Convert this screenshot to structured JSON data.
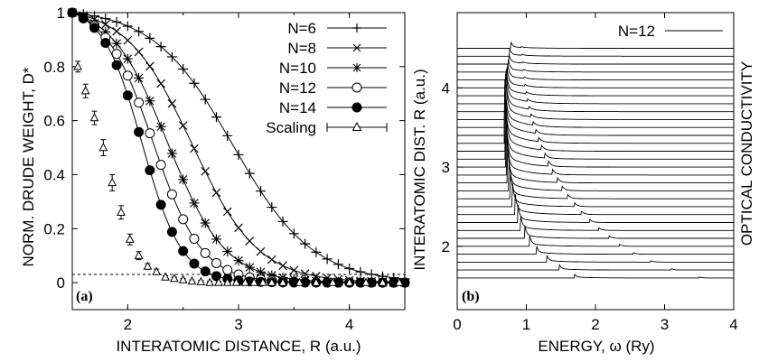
{
  "chart_data": [
    {
      "type": "line",
      "panel_label": "(a)",
      "xlabel": "INTERATOMIC DISTANCE, R (a.u.)",
      "ylabel": "NORM. DRUDE WEIGHT, D*",
      "xlim": [
        1.5,
        4.5
      ],
      "ylim": [
        -0.1,
        1.0
      ],
      "xticks": [
        "2",
        "3",
        "4"
      ],
      "yticks": [
        "0",
        "0.2",
        "0.4",
        "0.6",
        "0.8",
        "1"
      ],
      "legend_position": "top-right",
      "reference_line": "dashed horizontal at D* = 0",
      "series": [
        {
          "name": "N=6",
          "marker": "plus",
          "midpoint": 2.95,
          "width": 0.36
        },
        {
          "name": "N=8",
          "marker": "cross",
          "midpoint": 2.58,
          "width": 0.3
        },
        {
          "name": "N=10",
          "marker": "asterisk",
          "midpoint": 2.36,
          "width": 0.26
        },
        {
          "name": "N=12",
          "marker": "open-circle",
          "midpoint": 2.23,
          "width": 0.22
        },
        {
          "name": "N=14",
          "marker": "filled-circle",
          "midpoint": 2.13,
          "width": 0.18
        },
        {
          "name": "Scaling",
          "marker": "open-triangle",
          "error_bars": true,
          "x": [
            1.55,
            1.62,
            1.7,
            1.78,
            1.86,
            1.94,
            2.02,
            2.1,
            2.18,
            2.26,
            2.34,
            2.42,
            2.5,
            2.58,
            2.66,
            2.74,
            2.82,
            2.9,
            2.98,
            3.06,
            3.14,
            3.22,
            3.3,
            3.4,
            3.55,
            3.7,
            3.85,
            4.0,
            4.15,
            4.3,
            4.45
          ],
          "y": [
            0.8,
            0.71,
            0.61,
            0.5,
            0.37,
            0.26,
            0.16,
            0.1,
            0.06,
            0.04,
            0.02,
            0.015,
            0.01,
            0.005,
            0.003,
            0.0,
            0.0,
            0.0,
            0.0,
            0.0,
            0.0,
            0.0,
            0.0,
            0.0,
            0.0,
            0.0,
            0.0,
            0.0,
            0.0,
            0.0,
            0.0
          ],
          "err": [
            0.02,
            0.025,
            0.025,
            0.03,
            0.03,
            0.025,
            0.02,
            0.015,
            0.01,
            0.01,
            0.005,
            0.005,
            0.005,
            0.005,
            0.005,
            0.005,
            0.005,
            0.005,
            0.005,
            0.005,
            0.005,
            0.005,
            0.005,
            0.005,
            0.005,
            0.005,
            0.005,
            0.005,
            0.005,
            0.005,
            0.005
          ]
        }
      ]
    },
    {
      "type": "line",
      "panel_label": "(b)",
      "xlabel": "ENERGY, ω (Ry)",
      "ylabel": "INTERATOMIC DIST. R (a.u.)",
      "right_label": "OPTICAL CONDUCTIVITY",
      "xlim": [
        0,
        4
      ],
      "ylim": [
        1.2,
        4.95
      ],
      "xticks": [
        "0",
        "1",
        "2",
        "3",
        "4"
      ],
      "yticks": [
        "2",
        "3",
        "4"
      ],
      "legend_position": "top-right",
      "series": [
        {
          "name": "N=12"
        }
      ],
      "waterfall": {
        "R_start": 1.6,
        "R_step": 0.1,
        "R_end": 4.5,
        "peak_energy": [
          1.7,
          1.48,
          1.3,
          1.15,
          1.05,
          0.98,
          0.92,
          0.88,
          0.84,
          0.8,
          0.77,
          0.75,
          0.73,
          0.72,
          0.71,
          0.7,
          0.7,
          0.69,
          0.69,
          0.69,
          0.7,
          0.7,
          0.71,
          0.71,
          0.72,
          0.73,
          0.74,
          0.75,
          0.76,
          0.78
        ],
        "peak_height": [
          0.5,
          0.7,
          0.9,
          1.1,
          1.4,
          1.7,
          2.0,
          2.4,
          2.8,
          3.2,
          3.6,
          4.2,
          4.8,
          5.4,
          6.0,
          6.5,
          6.8,
          7.0,
          7.0,
          6.6,
          6.0,
          5.2,
          4.4,
          3.6,
          2.8,
          2.2,
          1.7,
          1.3,
          1.0,
          0.8
        ],
        "secondary_peak_energy": [
          3.5,
          3.1,
          2.8,
          2.55,
          2.35,
          2.2,
          2.05,
          1.92,
          1.8,
          1.7,
          1.6,
          1.52,
          1.45,
          1.38,
          1.32,
          1.27,
          1.22,
          1.18,
          1.14,
          1.1,
          1.07,
          1.04,
          1.02,
          1.0,
          0.98,
          0.97,
          0.96,
          0.95,
          0.94,
          0.93
        ],
        "secondary_peak_height": [
          0.06,
          0.08,
          0.09,
          0.1,
          0.12,
          0.14,
          0.16,
          0.18,
          0.2,
          0.22,
          0.24,
          0.26,
          0.28,
          0.3,
          0.3,
          0.28,
          0.26,
          0.24,
          0.22,
          0.2,
          0.18,
          0.16,
          0.14,
          0.12,
          0.1,
          0.09,
          0.08,
          0.07,
          0.06,
          0.05
        ]
      }
    }
  ]
}
